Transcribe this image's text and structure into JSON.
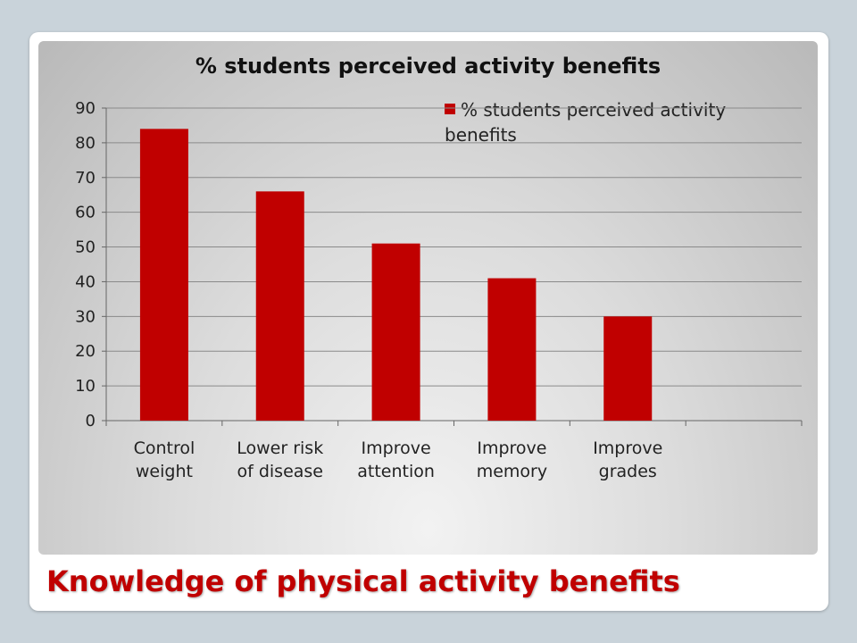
{
  "slide": {
    "title": "Knowledge of physical activity benefits"
  },
  "chart_data": {
    "type": "bar",
    "title": "% students perceived activity benefits",
    "categories": [
      "Control weight",
      "Lower risk of disease",
      "Improve attention",
      "Improve memory",
      "Improve grades"
    ],
    "category_lines": [
      [
        "Control",
        "weight"
      ],
      [
        "Lower risk",
        "of disease"
      ],
      [
        "Improve",
        "attention"
      ],
      [
        "Improve",
        "memory"
      ],
      [
        "Improve",
        "grades"
      ]
    ],
    "series": [
      {
        "name": "% students perceived activity benefits",
        "values": [
          84,
          66,
          51,
          41,
          30
        ],
        "color": "#c00000"
      }
    ],
    "ylim": [
      0,
      90
    ],
    "yticks": [
      0,
      10,
      20,
      30,
      40,
      50,
      60,
      70,
      80,
      90
    ],
    "grid": true,
    "legend": "top-right",
    "xlabel": "",
    "ylabel": ""
  }
}
